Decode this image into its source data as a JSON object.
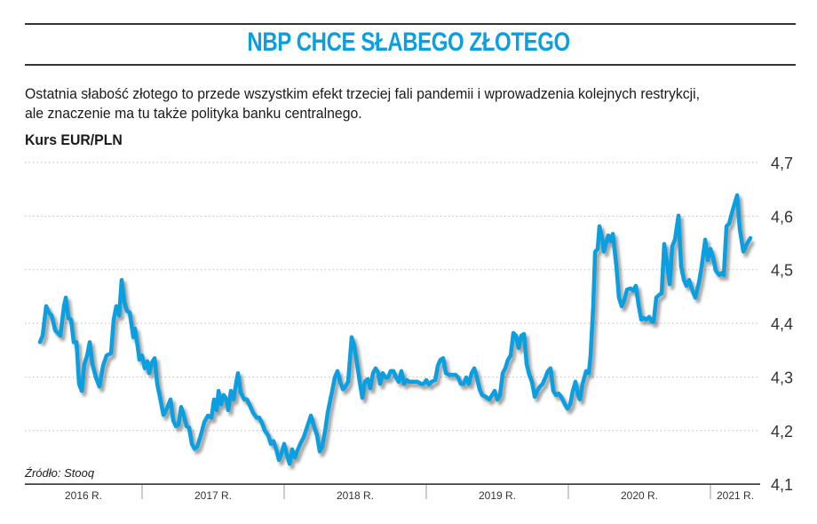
{
  "header": {
    "title": "NBP CHCE SŁABEGO ZŁOTEGO",
    "paragraph_line1": "Ostatnia słabość złotego to przede wszystkim efekt trzeciej fali pandemii i wprowadzenia kolejnych restrykcji,",
    "paragraph_line2": "ale znaczenie ma tu także polityka banku centralnego."
  },
  "source": "Źródło: Stooq",
  "chart_data": {
    "type": "line",
    "title": "Kurs EUR/PLN",
    "color": "#0a9fe0",
    "ylim": [
      4.1,
      4.7
    ],
    "yticks": [
      4.1,
      4.2,
      4.3,
      4.4,
      4.5,
      4.6,
      4.7
    ],
    "ytick_labels": [
      "4,1",
      "4,2",
      "4,3",
      "4,4",
      "4,5",
      "4,6",
      "4,7"
    ],
    "xlim": [
      2016,
      2021.35
    ],
    "x_categories": [
      "2016 R.",
      "2017 R.",
      "2018 R.",
      "2019 R.",
      "2020 R.",
      "2021 R."
    ],
    "grid": true,
    "x": [
      2016.281,
      2016.3,
      2016.325,
      2016.344,
      2016.363,
      2016.388,
      2016.406,
      2016.425,
      2016.45,
      2016.463,
      2016.481,
      2016.5,
      2016.519,
      2016.538,
      2016.556,
      2016.575,
      2016.594,
      2016.613,
      2016.631,
      2016.65,
      2016.675,
      2016.7,
      2016.725,
      2016.75,
      2016.781,
      2016.8,
      2016.819,
      2016.838,
      2016.856,
      2016.875,
      2016.894,
      2016.913,
      2016.938,
      2016.95,
      2016.969,
      2016.981,
      2017.0,
      2017.019,
      2017.038,
      2017.05,
      2017.069,
      2017.088,
      2017.106,
      2017.125,
      2017.15,
      2017.175,
      2017.2,
      2017.219,
      2017.238,
      2017.256,
      2017.275,
      2017.294,
      2017.313,
      2017.331,
      2017.35,
      2017.369,
      2017.388,
      2017.413,
      2017.438,
      2017.463,
      2017.488,
      2017.506,
      2017.525,
      2017.538,
      2017.556,
      2017.575,
      2017.594,
      2017.606,
      2017.625,
      2017.644,
      2017.663,
      2017.675,
      2017.694,
      2017.719,
      2017.738,
      2017.763,
      2017.781,
      2017.806,
      2017.825,
      2017.844,
      2017.863,
      2017.888,
      2017.906,
      2017.925,
      2017.944,
      2017.963,
      2017.981,
      2018.0,
      2018.019,
      2018.038,
      2018.056,
      2018.075,
      2018.094,
      2018.113,
      2018.138,
      2018.163,
      2018.188,
      2018.206,
      2018.231,
      2018.25,
      2018.269,
      2018.288,
      2018.306,
      2018.325,
      2018.338,
      2018.356,
      2018.375,
      2018.394,
      2018.413,
      2018.431,
      2018.45,
      2018.475,
      2018.494,
      2018.513,
      2018.531,
      2018.55,
      2018.569,
      2018.588,
      2018.606,
      2018.625,
      2018.644,
      2018.663,
      2018.675,
      2018.694,
      2018.713,
      2018.731,
      2018.75,
      2018.769,
      2018.788,
      2018.806,
      2018.825,
      2018.844,
      2018.863,
      2018.881,
      2018.913,
      2018.938,
      2018.963,
      2018.981,
      2019.0,
      2019.019,
      2019.038,
      2019.063,
      2019.081,
      2019.1,
      2019.119,
      2019.138,
      2019.163,
      2019.188,
      2019.206,
      2019.225,
      2019.244,
      2019.263,
      2019.281,
      2019.3,
      2019.319,
      2019.338,
      2019.356,
      2019.375,
      2019.394,
      2019.419,
      2019.444,
      2019.463,
      2019.481,
      2019.5,
      2019.519,
      2019.538,
      2019.556,
      2019.575,
      2019.594,
      2019.613,
      2019.631,
      2019.65,
      2019.669,
      2019.688,
      2019.706,
      2019.725,
      2019.744,
      2019.763,
      2019.781,
      2019.8,
      2019.819,
      2019.838,
      2019.856,
      2019.875,
      2019.894,
      2019.913,
      2019.931,
      2019.95,
      2019.975,
      2019.994,
      2020.013,
      2020.031,
      2020.05,
      2020.069,
      2020.081,
      2020.1,
      2020.125,
      2020.144,
      2020.156,
      2020.175,
      2020.188,
      2020.206,
      2020.219,
      2020.238,
      2020.25,
      2020.263,
      2020.281,
      2020.294,
      2020.313,
      2020.338,
      2020.356,
      2020.375,
      2020.394,
      2020.413,
      2020.438,
      2020.456,
      2020.475,
      2020.494,
      2020.513,
      2020.531,
      2020.55,
      2020.569,
      2020.588,
      2020.6,
      2020.619,
      2020.638,
      2020.656,
      2020.675,
      2020.694,
      2020.713,
      2020.731,
      2020.75,
      2020.775,
      2020.794,
      2020.813,
      2020.831,
      2020.85,
      2020.875,
      2020.894,
      2020.919,
      2020.938,
      2020.963,
      2020.981,
      2021.0,
      2021.019,
      2021.038,
      2021.063,
      2021.081,
      2021.094,
      2021.113,
      2021.131,
      2021.156,
      2021.188,
      2021.206,
      2021.231,
      2021.256,
      2021.281
    ],
    "values": [
      4.365,
      4.377,
      4.432,
      4.42,
      4.415,
      4.387,
      4.382,
      4.377,
      4.432,
      4.448,
      4.41,
      4.407,
      4.365,
      4.365,
      4.287,
      4.274,
      4.324,
      4.34,
      4.365,
      4.324,
      4.299,
      4.282,
      4.321,
      4.34,
      4.344,
      4.407,
      4.432,
      4.415,
      4.481,
      4.44,
      4.423,
      4.42,
      4.374,
      4.39,
      4.357,
      4.332,
      4.34,
      4.316,
      4.329,
      4.307,
      4.327,
      4.335,
      4.287,
      4.263,
      4.229,
      4.241,
      4.258,
      4.219,
      4.208,
      4.211,
      4.244,
      4.228,
      4.208,
      4.205,
      4.175,
      4.166,
      4.17,
      4.191,
      4.216,
      4.228,
      4.224,
      4.258,
      4.238,
      4.274,
      4.249,
      4.266,
      4.258,
      4.238,
      4.274,
      4.258,
      4.291,
      4.307,
      4.271,
      4.258,
      4.258,
      4.244,
      4.233,
      4.224,
      4.224,
      4.214,
      4.2,
      4.191,
      4.175,
      4.18,
      4.165,
      4.145,
      4.158,
      4.175,
      4.155,
      4.138,
      4.165,
      4.15,
      4.163,
      4.175,
      4.188,
      4.208,
      4.228,
      4.211,
      4.191,
      4.161,
      4.171,
      4.2,
      4.233,
      4.258,
      4.274,
      4.299,
      4.311,
      4.291,
      4.277,
      4.282,
      4.291,
      4.374,
      4.357,
      4.324,
      4.291,
      4.261,
      4.291,
      4.296,
      4.279,
      4.307,
      4.316,
      4.307,
      4.287,
      4.307,
      4.299,
      4.299,
      4.311,
      4.311,
      4.299,
      4.291,
      4.311,
      4.287,
      4.294,
      4.291,
      4.291,
      4.291,
      4.287,
      4.287,
      4.294,
      4.286,
      4.291,
      4.294,
      4.321,
      4.332,
      4.335,
      4.307,
      4.304,
      4.304,
      4.304,
      4.299,
      4.287,
      4.287,
      4.299,
      4.287,
      4.307,
      4.316,
      4.299,
      4.277,
      4.266,
      4.263,
      4.258,
      4.266,
      4.274,
      4.258,
      4.266,
      4.307,
      4.316,
      4.332,
      4.34,
      4.382,
      4.377,
      4.354,
      4.377,
      4.38,
      4.324,
      4.304,
      4.291,
      4.263,
      4.274,
      4.282,
      4.287,
      4.299,
      4.311,
      4.316,
      4.274,
      4.266,
      4.269,
      4.263,
      4.249,
      4.241,
      4.249,
      4.274,
      4.291,
      4.266,
      4.258,
      4.287,
      4.311,
      4.307,
      4.34,
      4.432,
      4.533,
      4.539,
      4.581,
      4.559,
      4.534,
      4.548,
      4.564,
      4.553,
      4.567,
      4.506,
      4.448,
      4.432,
      4.443,
      4.463,
      4.465,
      4.461,
      4.47,
      4.435,
      4.407,
      4.41,
      4.407,
      4.412,
      4.403,
      4.403,
      4.448,
      4.453,
      4.456,
      4.548,
      4.514,
      4.473,
      4.544,
      4.556,
      4.601,
      4.506,
      4.481,
      4.47,
      4.481,
      4.46,
      4.448,
      4.476,
      4.506,
      4.556,
      4.518,
      4.539,
      4.523,
      4.498,
      4.49,
      4.494,
      4.49,
      4.581,
      4.586,
      4.611,
      4.639,
      4.576,
      4.534,
      4.548,
      4.559
    ]
  }
}
